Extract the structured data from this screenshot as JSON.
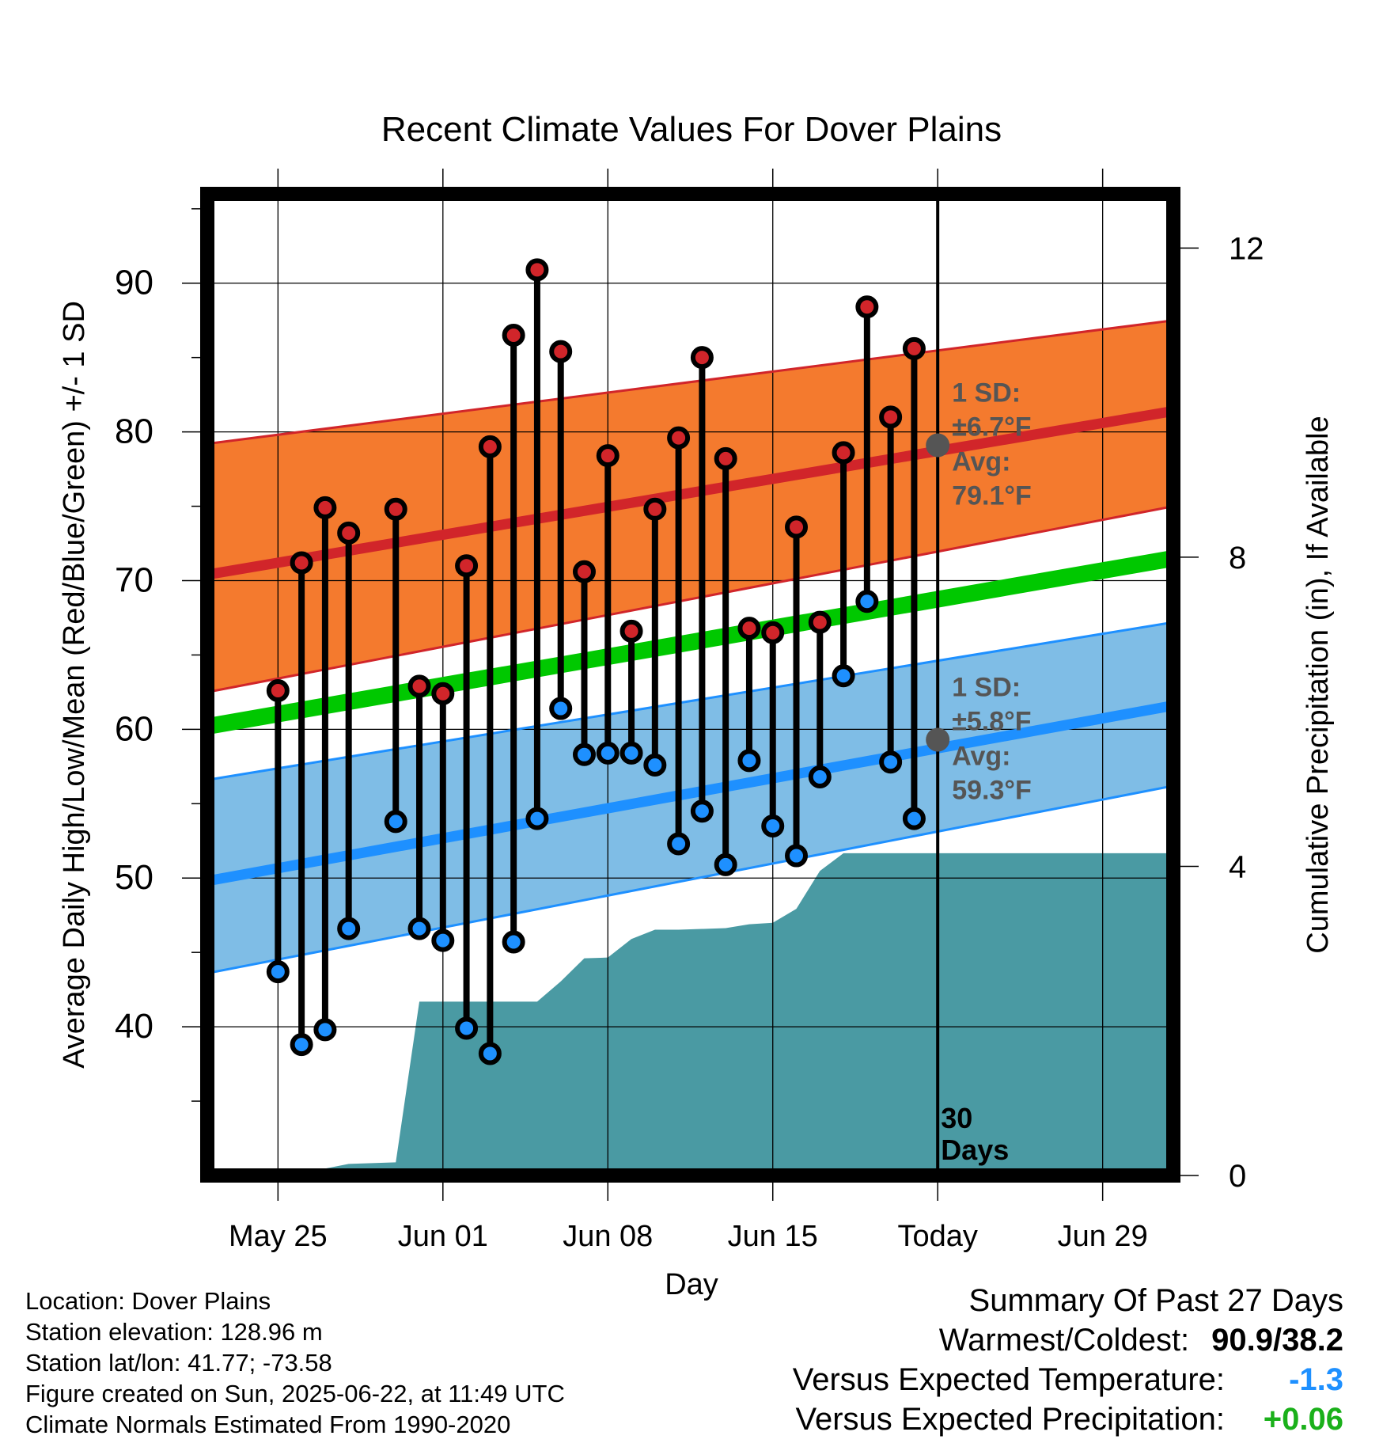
{
  "chart_data": {
    "type": "line",
    "title": "Recent Climate Values For Dover Plains",
    "xlabel": "Day",
    "ylabel": "Average Daily High/Low/Mean (Red/Blue/Green) +/- 1 SD",
    "y2label": "Cumulative Precipitation (in), If Available",
    "xlim": [
      "2025-05-22",
      "2025-07-02"
    ],
    "ylim": [
      30,
      96
    ],
    "y2lim": [
      0,
      12.7
    ],
    "x_ticks": [
      {
        "date": "2025-05-25",
        "label": "May 25"
      },
      {
        "date": "2025-06-01",
        "label": "Jun 01"
      },
      {
        "date": "2025-06-08",
        "label": "Jun 08"
      },
      {
        "date": "2025-06-15",
        "label": "Jun 15"
      },
      {
        "date": "2025-06-22",
        "label": "Today"
      },
      {
        "date": "2025-06-29",
        "label": "Jun 29"
      }
    ],
    "y_ticks": [
      40,
      50,
      60,
      70,
      80,
      90
    ],
    "y2_ticks": [
      0,
      4,
      8,
      12
    ],
    "grid": true,
    "today": "2025-06-22",
    "window_label": [
      "30",
      "Days"
    ],
    "normals": {
      "dates": [
        "2025-05-22",
        "2025-07-02"
      ],
      "high_mean": [
        70.4,
        81.4
      ],
      "high_upper": [
        79.2,
        87.5
      ],
      "high_lower": [
        62.5,
        75.0
      ],
      "mean": [
        60.2,
        71.5
      ],
      "low_mean": [
        49.8,
        61.6
      ],
      "low_upper": [
        56.6,
        67.2
      ],
      "low_lower": [
        43.6,
        56.2
      ]
    },
    "high_annotation": {
      "sd_label": "1 SD:",
      "sd_value": "±6.7°F",
      "avg_label": "Avg:",
      "avg_value": "79.1°F",
      "avg": 79.1
    },
    "low_annotation": {
      "sd_label": "1 SD:",
      "sd_value": "±5.8°F",
      "avg_label": "Avg:",
      "avg_value": "59.3°F",
      "avg": 59.3
    },
    "observations": [
      {
        "date": "2025-05-25",
        "high": 62.6,
        "low": 43.7
      },
      {
        "date": "2025-05-26",
        "high": 71.2,
        "low": 38.8
      },
      {
        "date": "2025-05-27",
        "high": 74.9,
        "low": 39.8
      },
      {
        "date": "2025-05-28",
        "high": 73.2,
        "low": 46.6
      },
      {
        "date": "2025-05-30",
        "high": 74.8,
        "low": 53.8
      },
      {
        "date": "2025-05-31",
        "high": 62.9,
        "low": 46.6
      },
      {
        "date": "2025-06-01",
        "high": 62.4,
        "low": 45.8
      },
      {
        "date": "2025-06-02",
        "high": 71.0,
        "low": 39.9
      },
      {
        "date": "2025-06-03",
        "high": 79.0,
        "low": 38.2
      },
      {
        "date": "2025-06-04",
        "high": 86.5,
        "low": 45.7
      },
      {
        "date": "2025-06-05",
        "high": 90.9,
        "low": 54.0
      },
      {
        "date": "2025-06-06",
        "high": 85.4,
        "low": 61.4
      },
      {
        "date": "2025-06-07",
        "high": 70.6,
        "low": 58.3
      },
      {
        "date": "2025-06-08",
        "high": 78.4,
        "low": 58.4
      },
      {
        "date": "2025-06-09",
        "high": 66.6,
        "low": 58.4
      },
      {
        "date": "2025-06-10",
        "high": 74.8,
        "low": 57.6
      },
      {
        "date": "2025-06-11",
        "high": 79.6,
        "low": 52.3
      },
      {
        "date": "2025-06-12",
        "high": 85.0,
        "low": 54.5
      },
      {
        "date": "2025-06-13",
        "high": 78.2,
        "low": 50.9
      },
      {
        "date": "2025-06-14",
        "high": 66.8,
        "low": 57.9
      },
      {
        "date": "2025-06-15",
        "high": 66.5,
        "low": 53.5
      },
      {
        "date": "2025-06-16",
        "high": 73.6,
        "low": 51.5
      },
      {
        "date": "2025-06-17",
        "high": 67.2,
        "low": 56.8
      },
      {
        "date": "2025-06-18",
        "high": 78.6,
        "low": 63.6
      },
      {
        "date": "2025-06-19",
        "high": 88.4,
        "low": 68.6
      },
      {
        "date": "2025-06-20",
        "high": 81.0,
        "low": 57.8
      },
      {
        "date": "2025-06-21",
        "high": 85.6,
        "low": 54.0
      }
    ],
    "precip_cumulative": {
      "dates": [
        "2025-05-22",
        "2025-05-25",
        "2025-05-26",
        "2025-05-28",
        "2025-05-30",
        "2025-05-31",
        "2025-06-01",
        "2025-06-05",
        "2025-06-06",
        "2025-06-07",
        "2025-06-08",
        "2025-06-09",
        "2025-06-10",
        "2025-06-11",
        "2025-06-12",
        "2025-06-13",
        "2025-06-14",
        "2025-06-15",
        "2025-06-16",
        "2025-06-17",
        "2025-06-18",
        "2025-06-19",
        "2025-06-22",
        "2025-07-02"
      ],
      "values": [
        0.0,
        0.0,
        0.03,
        0.15,
        0.17,
        2.25,
        2.25,
        2.25,
        2.51,
        2.81,
        2.82,
        3.06,
        3.18,
        3.18,
        3.19,
        3.2,
        3.25,
        3.27,
        3.45,
        3.94,
        4.17,
        4.17,
        4.17,
        4.17
      ]
    }
  },
  "colors": {
    "high_band": "#f47a2e",
    "high_line": "#d1252a",
    "mean_line": "#00c800",
    "low_band": "#7fbde6",
    "low_line": "#1e90ff",
    "precip": "#4a9aa3",
    "annotation": "#555555",
    "temp_anomaly": "#1e90ff",
    "precip_anomaly": "#1ab01a"
  },
  "footer": {
    "location": "Location: Dover Plains",
    "elevation": "Station elevation: 128.96 m",
    "latlon": "Station lat/lon: 41.77; -73.58",
    "created": "Figure created on Sun, 2025-06-22, at 11:49 UTC",
    "normals": "Climate Normals Estimated From 1990-2020"
  },
  "summary": {
    "title": "Summary Of Past 27 Days",
    "warm_cold_label": "Warmest/Coldest:",
    "warm_cold_value": "90.9/38.2",
    "temp_label": "Versus Expected Temperature:",
    "temp_value": "-1.3",
    "precip_label": "Versus Expected Precipitation:",
    "precip_value": "+0.06"
  }
}
